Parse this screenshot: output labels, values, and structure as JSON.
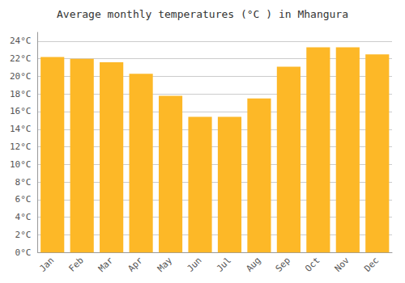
{
  "chart_data": {
    "type": "bar",
    "title": "Average monthly temperatures (°C ) in Mhangura",
    "categories": [
      "Jan",
      "Feb",
      "Mar",
      "Apr",
      "May",
      "Jun",
      "Jul",
      "Aug",
      "Sep",
      "Oct",
      "Nov",
      "Dec"
    ],
    "values": [
      22.2,
      22.0,
      21.6,
      20.3,
      17.8,
      15.4,
      15.4,
      17.5,
      21.1,
      23.3,
      23.3,
      22.5
    ],
    "color": "#FDB827",
    "ylim": [
      0,
      25
    ],
    "yticks": [
      {
        "value": 0,
        "label": "0°C"
      },
      {
        "value": 2,
        "label": "2°C"
      },
      {
        "value": 4,
        "label": "4°C"
      },
      {
        "value": 6,
        "label": "6°C"
      },
      {
        "value": 8,
        "label": "8°C"
      },
      {
        "value": 10,
        "label": "10°C"
      },
      {
        "value": 12,
        "label": "12°C"
      },
      {
        "value": 14,
        "label": "14°C"
      },
      {
        "value": 16,
        "label": "16°C"
      },
      {
        "value": 18,
        "label": "18°C"
      },
      {
        "value": 20,
        "label": "20°C"
      },
      {
        "value": 22,
        "label": "22°C"
      },
      {
        "value": 24,
        "label": "24°C"
      }
    ],
    "grid": true
  }
}
